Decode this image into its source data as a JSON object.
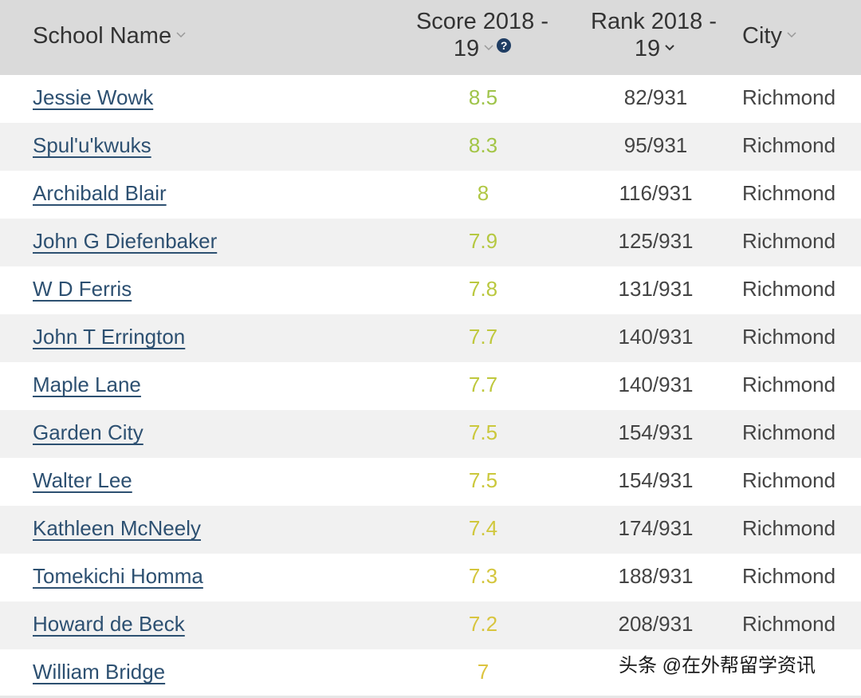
{
  "header": {
    "school_name": "School Name",
    "score_line1": "Score 2018 -",
    "score_line2": "19",
    "help": "?",
    "rank_line1": "Rank 2018 -",
    "rank_line2": "19",
    "city": "City"
  },
  "colors": {
    "header_bg": "#dadada",
    "link": "#2d5071",
    "score_high": "#a8c84a",
    "score_mid": "#c5c63c",
    "score_low": "#d9c840"
  },
  "rows": [
    {
      "name": "Jessie Wowk",
      "score": "8.5",
      "rank": "82/931",
      "city": "Richmond",
      "score_color": "#9fc44a"
    },
    {
      "name": "Spul'u'kwuks",
      "score": "8.3",
      "rank": "95/931",
      "city": "Richmond",
      "score_color": "#a3c546"
    },
    {
      "name": "Archibald Blair",
      "score": "8",
      "rank": "116/931",
      "city": "Richmond",
      "score_color": "#b0c743"
    },
    {
      "name": "John G Diefenbaker",
      "score": "7.9",
      "rank": "125/931",
      "city": "Richmond",
      "score_color": "#b5c841"
    },
    {
      "name": "W D Ferris",
      "score": "7.8",
      "rank": "131/931",
      "city": "Richmond",
      "score_color": "#bac83f"
    },
    {
      "name": "John T Errington",
      "score": "7.7",
      "rank": "140/931",
      "city": "Richmond",
      "score_color": "#bfc83d"
    },
    {
      "name": "Maple Lane",
      "score": "7.7",
      "rank": "140/931",
      "city": "Richmond",
      "score_color": "#bfc83d"
    },
    {
      "name": "Garden City",
      "score": "7.5",
      "rank": "154/931",
      "city": "Richmond",
      "score_color": "#cbc83c"
    },
    {
      "name": "Walter Lee",
      "score": "7.5",
      "rank": "154/931",
      "city": "Richmond",
      "score_color": "#cbc83c"
    },
    {
      "name": "Kathleen McNeely",
      "score": "7.4",
      "rank": "174/931",
      "city": "Richmond",
      "score_color": "#d0c73c"
    },
    {
      "name": "Tomekichi Homma",
      "score": "7.3",
      "rank": "188/931",
      "city": "Richmond",
      "score_color": "#d4c63d"
    },
    {
      "name": "Howard de Beck",
      "score": "7.2",
      "rank": "208/931",
      "city": "Richmond",
      "score_color": "#d8c53e"
    },
    {
      "name": "William Bridge",
      "score": "7",
      "rank": "",
      "city": "",
      "score_color": "#dcc43f"
    }
  ],
  "watermark": "头条 @在外帮留学资讯"
}
